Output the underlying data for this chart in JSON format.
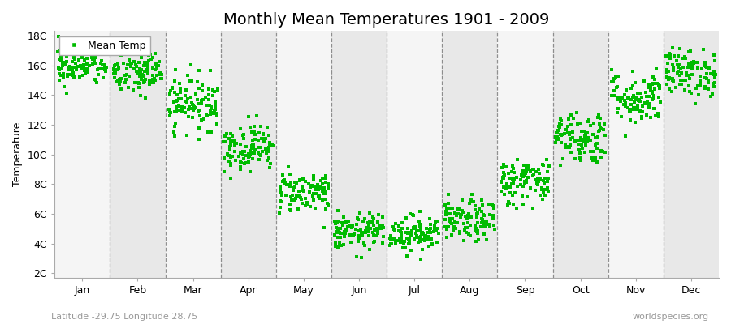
{
  "title": "Monthly Mean Temperatures 1901 - 2009",
  "ylabel": "Temperature",
  "xlabel_labels": [
    "Jan",
    "Feb",
    "Mar",
    "Apr",
    "May",
    "Jun",
    "Jul",
    "Aug",
    "Sep",
    "Oct",
    "Nov",
    "Dec"
  ],
  "ytick_labels": [
    "2C",
    "4C",
    "6C",
    "8C",
    "10C",
    "12C",
    "14C",
    "16C",
    "18C"
  ],
  "ytick_values": [
    2,
    4,
    6,
    8,
    10,
    12,
    14,
    16,
    18
  ],
  "ylim": [
    2,
    18
  ],
  "dot_color": "#00bb00",
  "bg_color": "#ffffff",
  "plot_bg_odd": "#f5f5f5",
  "plot_bg_even": "#e8e8e8",
  "legend_label": "Mean Temp",
  "subtitle": "Latitude -29.75 Longitude 28.75",
  "watermark": "worldspecies.org",
  "title_fontsize": 14,
  "label_fontsize": 9,
  "tick_fontsize": 9,
  "monthly_means": [
    16.0,
    15.5,
    13.5,
    10.5,
    7.5,
    4.8,
    4.7,
    5.5,
    8.2,
    11.2,
    13.8,
    15.5
  ],
  "monthly_stds": [
    0.7,
    0.8,
    0.9,
    0.8,
    0.7,
    0.6,
    0.6,
    0.7,
    0.8,
    0.9,
    0.9,
    0.8
  ],
  "n_years": 109,
  "seed": 42
}
